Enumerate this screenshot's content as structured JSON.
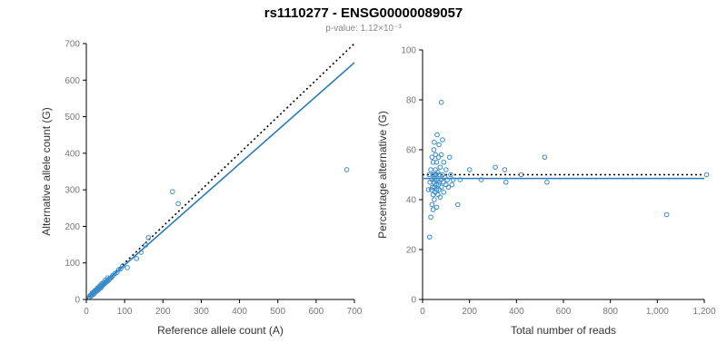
{
  "title": "rs1110277 - ENSG00000089057",
  "subtitle": "p-value: 1.12×10⁻³",
  "colors": {
    "points": "#3a8bc9",
    "fit_line": "#2a7ab9",
    "reference_line": "#000000",
    "axis": "#000000",
    "tick_labels": "#777777",
    "axis_labels": "#333333",
    "subtitle": "#888888"
  },
  "chart_data": [
    {
      "name": "allele-counts-scatter",
      "type": "scatter",
      "title": "",
      "xlabel": "Reference allele count (A)",
      "ylabel": "Alternative allele count (G)",
      "xlim": [
        0,
        700
      ],
      "ylim": [
        0,
        700
      ],
      "xticks": [
        0,
        100,
        200,
        300,
        400,
        500,
        600,
        700
      ],
      "yticks": [
        0,
        100,
        200,
        300,
        400,
        500,
        600,
        700
      ],
      "grid": false,
      "legend": "none",
      "lines": [
        {
          "name": "identity",
          "style": "dotted",
          "color": "#000000",
          "x1": 0,
          "y1": 0,
          "x2": 700,
          "y2": 700
        },
        {
          "name": "fit",
          "style": "solid",
          "color": "#2a7ab9",
          "x1": 0,
          "y1": 2,
          "x2": 700,
          "y2": 648
        }
      ],
      "points": [
        [
          8,
          7
        ],
        [
          10,
          11
        ],
        [
          12,
          9
        ],
        [
          14,
          14
        ],
        [
          15,
          18
        ],
        [
          16,
          13
        ],
        [
          18,
          17
        ],
        [
          20,
          15
        ],
        [
          20,
          21
        ],
        [
          22,
          24
        ],
        [
          24,
          20
        ],
        [
          25,
          26
        ],
        [
          26,
          22
        ],
        [
          28,
          29
        ],
        [
          30,
          25
        ],
        [
          30,
          32
        ],
        [
          32,
          27
        ],
        [
          33,
          34
        ],
        [
          35,
          30
        ],
        [
          36,
          38
        ],
        [
          38,
          32
        ],
        [
          40,
          36
        ],
        [
          40,
          43
        ],
        [
          42,
          38
        ],
        [
          44,
          40
        ],
        [
          45,
          47
        ],
        [
          46,
          42
        ],
        [
          48,
          44
        ],
        [
          50,
          46
        ],
        [
          50,
          53
        ],
        [
          52,
          48
        ],
        [
          55,
          50
        ],
        [
          56,
          59
        ],
        [
          58,
          53
        ],
        [
          60,
          56
        ],
        [
          62,
          57
        ],
        [
          65,
          60
        ],
        [
          68,
          64
        ],
        [
          70,
          66
        ],
        [
          75,
          71
        ],
        [
          80,
          74
        ],
        [
          85,
          82
        ],
        [
          90,
          84
        ],
        [
          95,
          92
        ],
        [
          107,
          87
        ],
        [
          131,
          112
        ],
        [
          143,
          129
        ],
        [
          155,
          149
        ],
        [
          162,
          169
        ],
        [
          225,
          295
        ],
        [
          240,
          262
        ],
        [
          680,
          355
        ]
      ]
    },
    {
      "name": "percentage-vs-reads-scatter",
      "type": "scatter",
      "title": "",
      "xlabel": "Total number of reads",
      "ylabel": "Percentage alternative (G)",
      "xlim": [
        0,
        1200
      ],
      "ylim": [
        0,
        100
      ],
      "xticks": [
        0,
        200,
        400,
        600,
        800,
        1000,
        1200
      ],
      "xtick_labels": [
        "0",
        "200",
        "400",
        "600",
        "800",
        "1,000",
        "1,200"
      ],
      "yticks": [
        0,
        20,
        40,
        60,
        80,
        100
      ],
      "grid": false,
      "legend": "none",
      "lines": [
        {
          "name": "expected-50-percent",
          "style": "dotted",
          "color": "#000000",
          "x1": 0,
          "y1": 50,
          "x2": 1200,
          "y2": 50
        },
        {
          "name": "fit",
          "style": "solid",
          "color": "#2a7ab9",
          "x1": 0,
          "y1": 48.5,
          "x2": 1200,
          "y2": 48.5
        }
      ],
      "points": [
        [
          25,
          44
        ],
        [
          28,
          50
        ],
        [
          30,
          25
        ],
        [
          32,
          47
        ],
        [
          35,
          33
        ],
        [
          35,
          52
        ],
        [
          38,
          44
        ],
        [
          40,
          38
        ],
        [
          40,
          48
        ],
        [
          40,
          57
        ],
        [
          42,
          45
        ],
        [
          44,
          50
        ],
        [
          45,
          36
        ],
        [
          45,
          42
        ],
        [
          45,
          55
        ],
        [
          48,
          47
        ],
        [
          48,
          60
        ],
        [
          50,
          40
        ],
        [
          50,
          45
        ],
        [
          50,
          50
        ],
        [
          50,
          63
        ],
        [
          52,
          48
        ],
        [
          54,
          43
        ],
        [
          55,
          52
        ],
        [
          55,
          58
        ],
        [
          58,
          46
        ],
        [
          58,
          50
        ],
        [
          60,
          37
        ],
        [
          60,
          44
        ],
        [
          60,
          55
        ],
        [
          62,
          48
        ],
        [
          62,
          66
        ],
        [
          65,
          42
        ],
        [
          65,
          51
        ],
        [
          68,
          46
        ],
        [
          68,
          57
        ],
        [
          70,
          44
        ],
        [
          70,
          50
        ],
        [
          70,
          62
        ],
        [
          72,
          47
        ],
        [
          75,
          41
        ],
        [
          75,
          53
        ],
        [
          78,
          48
        ],
        [
          80,
          45
        ],
        [
          80,
          58
        ],
        [
          80,
          79
        ],
        [
          85,
          50
        ],
        [
          85,
          64
        ],
        [
          88,
          47
        ],
        [
          90,
          43
        ],
        [
          90,
          55
        ],
        [
          95,
          49
        ],
        [
          100,
          46
        ],
        [
          100,
          52
        ],
        [
          105,
          48
        ],
        [
          110,
          45
        ],
        [
          115,
          57
        ],
        [
          120,
          50
        ],
        [
          125,
          46
        ],
        [
          130,
          48
        ],
        [
          150,
          38
        ],
        [
          160,
          48
        ],
        [
          200,
          52
        ],
        [
          250,
          48
        ],
        [
          310,
          53
        ],
        [
          350,
          52
        ],
        [
          355,
          47
        ],
        [
          420,
          50
        ],
        [
          520,
          57
        ],
        [
          530,
          47
        ],
        [
          1040,
          34
        ],
        [
          1210,
          50
        ]
      ]
    }
  ]
}
